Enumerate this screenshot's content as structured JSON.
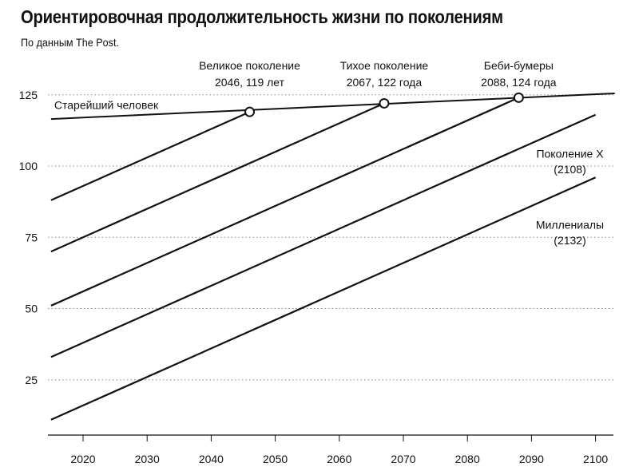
{
  "title": "Ориентировочная продолжительность жизни по поколениям",
  "subtitle": "По данным The Post.",
  "chart_data": {
    "type": "line",
    "title": "Ориентировочная продолжительность жизни по поколениям",
    "subtitle": "По данным The Post.",
    "xlabel": "",
    "ylabel": "",
    "xlim": [
      2015,
      2103
    ],
    "ylim": [
      0,
      128
    ],
    "x_ticks": [
      2020,
      2030,
      2040,
      2050,
      2060,
      2070,
      2080,
      2090,
      2100
    ],
    "y_ticks": [
      25,
      50,
      75,
      100,
      125
    ],
    "grid": "horizontal-dotted",
    "line_color": "#111111",
    "grid_color": "#888888",
    "series": [
      {
        "name": "Старейший человек",
        "x": [
          2015,
          2103
        ],
        "y": [
          116.5,
          125.5
        ]
      },
      {
        "name": "Великое поколение",
        "x": [
          2015,
          2046
        ],
        "y": [
          88,
          119
        ]
      },
      {
        "name": "Тихое поколение",
        "x": [
          2015,
          2067
        ],
        "y": [
          70,
          122
        ]
      },
      {
        "name": "Беби-бумеры",
        "x": [
          2015,
          2088
        ],
        "y": [
          51,
          124
        ]
      },
      {
        "name": "Поколение X",
        "x": [
          2015,
          2100
        ],
        "y": [
          33,
          118
        ]
      },
      {
        "name": "Миллениалы",
        "x": [
          2015,
          2100
        ],
        "y": [
          11,
          96
        ]
      }
    ],
    "markers": [
      {
        "x": 2046,
        "y": 119,
        "label_line1": "Великое поколение",
        "label_line2": "2046, 119 лет"
      },
      {
        "x": 2067,
        "y": 122,
        "label_line1": "Тихое поколение",
        "label_line2": "2067, 122 года"
      },
      {
        "x": 2088,
        "y": 124,
        "label_line1": "Беби-бумеры",
        "label_line2": "2088, 124 года"
      }
    ],
    "annotations": [
      {
        "text": "Старейший человек",
        "x": 2015.5,
        "y": 120,
        "anchor": "start"
      },
      {
        "text": "Поколение X",
        "x": 2096,
        "y": 103,
        "anchor": "middle"
      },
      {
        "text": "(2108)",
        "x": 2096,
        "y": 97.5,
        "anchor": "middle"
      },
      {
        "text": "Миллениалы",
        "x": 2096,
        "y": 78,
        "anchor": "middle"
      },
      {
        "text": "(2132)",
        "x": 2096,
        "y": 72.5,
        "anchor": "middle"
      }
    ]
  }
}
